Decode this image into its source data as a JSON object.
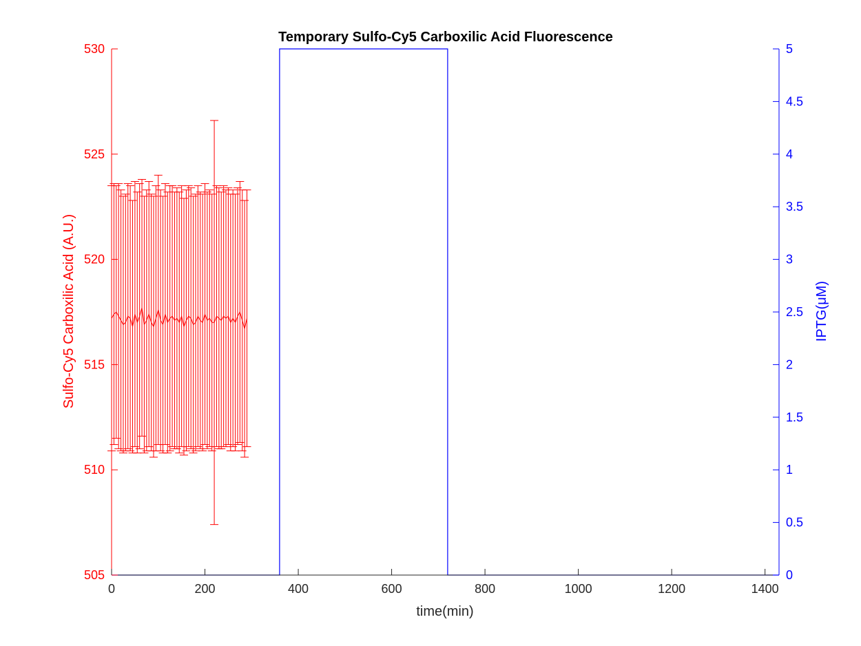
{
  "chart_data": {
    "type": "line",
    "title": "Temporary Sulfo-Cy5 Carboxilic Acid Fluorescence",
    "xlabel": "time(min)",
    "ylabel_left": "Sulfo-Cy5 Carboxilic Acid (A.U.)",
    "ylabel_right": "IPTG(μM)",
    "xlim": [
      0,
      1430
    ],
    "ylim_left": [
      505,
      530
    ],
    "ylim_right": [
      0,
      5
    ],
    "x_ticks": [
      "0",
      "200",
      "400",
      "600",
      "800",
      "1000",
      "1200",
      "1400"
    ],
    "y_left_ticks": [
      "505",
      "510",
      "515",
      "520",
      "525",
      "530"
    ],
    "y_right_ticks": [
      "0",
      "0.5",
      "1",
      "1.5",
      "2",
      "2.5",
      "3",
      "3.5",
      "4",
      "4.5",
      "5"
    ],
    "grid": false,
    "colors": {
      "left_axis": "#ff0000",
      "right_axis": "#0000ff",
      "x_axis": "#262626"
    },
    "series": [
      {
        "axis": "left",
        "x": [
          0,
          5,
          10,
          15,
          20,
          25,
          30,
          35,
          40,
          45,
          50,
          55,
          60,
          65,
          70,
          75,
          80,
          85,
          90,
          95,
          100,
          105,
          110,
          115,
          120,
          125,
          130,
          135,
          140,
          145,
          150,
          155,
          160,
          165,
          170,
          175,
          180,
          185,
          190,
          195,
          200,
          205,
          210,
          215,
          220,
          225,
          230,
          235,
          240,
          245,
          250,
          255,
          260,
          265,
          270,
          275,
          280,
          285,
          290
        ],
        "y": [
          517.2,
          517.4,
          517.5,
          517.3,
          517.1,
          516.9,
          517.0,
          517.3,
          517.2,
          516.8,
          517.4,
          517.0,
          517.3,
          517.7,
          516.9,
          517.1,
          517.4,
          517.0,
          516.8,
          517.2,
          517.6,
          517.1,
          516.9,
          517.4,
          517.0,
          517.2,
          517.3,
          517.1,
          517.2,
          517.0,
          517.3,
          516.8,
          517.1,
          517.3,
          517.2,
          516.9,
          517.0,
          517.3,
          517.1,
          517.0,
          517.4,
          517.1,
          517.2,
          517.0,
          517.0,
          517.3,
          517.2,
          517.1,
          517.3,
          517.2,
          517.3,
          517.0,
          517.2,
          517.0,
          517.3,
          517.5,
          517.1,
          516.7,
          517.2
        ],
        "err": [
          6.3,
          6.2,
          6.0,
          6.3,
          6.2,
          6.1,
          6.1,
          6.3,
          6.3,
          6.0,
          6.3,
          6.2,
          6.3,
          6.1,
          6.1,
          6.2,
          6.3,
          6.1,
          6.2,
          6.3,
          6.4,
          6.2,
          6.1,
          6.2,
          6.2,
          6.3,
          6.2,
          6.1,
          6.2,
          6.2,
          6.2,
          6.1,
          6.2,
          6.2,
          6.2,
          6.1,
          6.1,
          6.2,
          6.1,
          6.1,
          6.2,
          6.1,
          6.1,
          6.1,
          9.6,
          6.2,
          6.2,
          6.1,
          6.2,
          6.1,
          6.1,
          6.1,
          6.1,
          6.1,
          6.1,
          6.2,
          6.2,
          6.1,
          6.1
        ]
      },
      {
        "axis": "right",
        "x": [
          0,
          360,
          360,
          720,
          720,
          1430
        ],
        "y": [
          0,
          0,
          5,
          5,
          0,
          0
        ]
      }
    ]
  }
}
